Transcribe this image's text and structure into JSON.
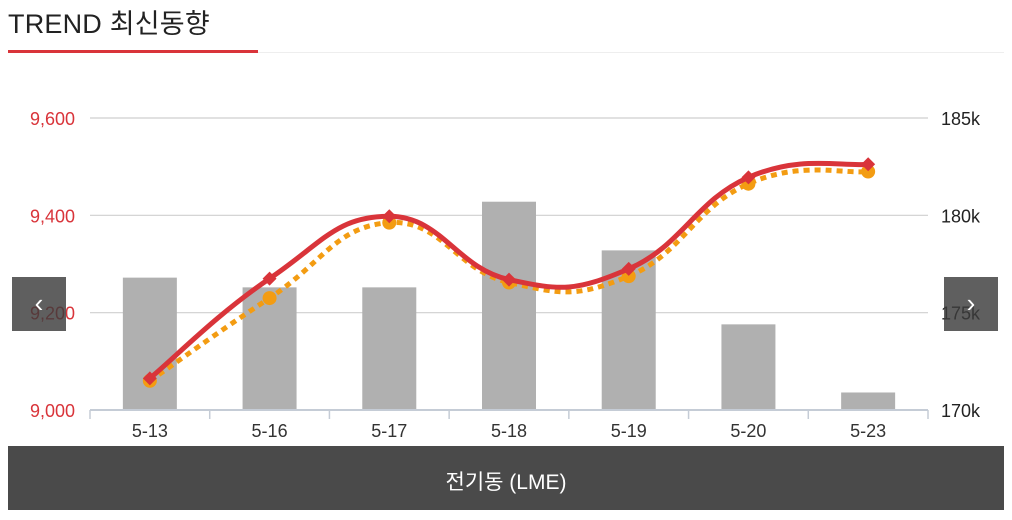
{
  "header": {
    "title": "TREND 최신동향"
  },
  "nav": {
    "prev_glyph": "‹",
    "next_glyph": "›"
  },
  "footer": {
    "label": "전기동 (LME)"
  },
  "colors": {
    "accent": "#d9343a",
    "bars": "#b0b0b0",
    "price_line": "#d9343a",
    "secondary_line": "#f39c12",
    "left_axis_text": "#d9343a",
    "right_axis_text": "#222222",
    "footer_bg": "#4a4a4a"
  },
  "chart_data": {
    "type": "bar+line",
    "categories": [
      "5-13",
      "5-16",
      "5-17",
      "5-18",
      "5-19",
      "5-20",
      "5-23"
    ],
    "left_axis": {
      "ticks": [
        "9,000",
        "9,200",
        "9,400",
        "9,600"
      ],
      "range": [
        9000,
        9600
      ]
    },
    "right_axis": {
      "ticks": [
        "170k",
        "175k",
        "180k",
        "185k"
      ],
      "range": [
        170000,
        185000
      ]
    },
    "bars": {
      "axis": "right",
      "values": [
        176800,
        176300,
        176300,
        180700,
        178200,
        174400,
        170900
      ]
    },
    "series": [
      {
        "axis": "left",
        "style": "solid",
        "values": [
          9065,
          9270,
          9398,
          9268,
          9290,
          9478,
          9505
        ]
      },
      {
        "axis": "left",
        "style": "dotted",
        "values": [
          9060,
          9230,
          9385,
          9262,
          9275,
          9465,
          9490
        ]
      }
    ],
    "grid": true,
    "legend": "none"
  }
}
